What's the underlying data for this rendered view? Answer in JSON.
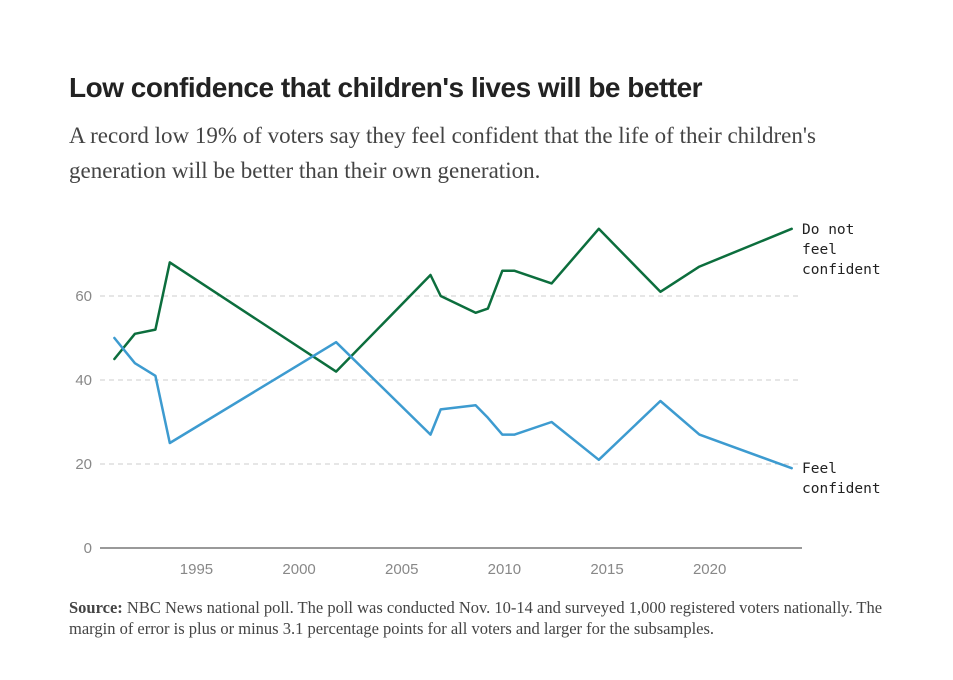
{
  "title": "Low confidence that children's lives will be better",
  "subtitle": "A record low 19% of voters say they feel confident that the life of their children's generation will be better than their own generation.",
  "source": {
    "label": "Source:",
    "text": " NBC News national poll. The poll was conducted Nov. 10-14 and surveyed 1,000 registered voters nationally. The margin of error is plus or minus 3.1 percentage points for all voters and larger for the subsamples."
  },
  "chart_data": {
    "type": "line",
    "xlim": [
      1990.3,
      2024.5
    ],
    "ylim": [
      0,
      80
    ],
    "x_ticks": [
      1995,
      2000,
      2005,
      2010,
      2015,
      2020
    ],
    "y_ticks": [
      0,
      20,
      40,
      60
    ],
    "grid": "horizontal dashed",
    "series": [
      {
        "name": "Do not feel confident",
        "label_lines": [
          "Do not",
          "feel",
          "confident"
        ],
        "color": "#0c6e3d",
        "x": [
          1991.0,
          1992.0,
          1993.0,
          1993.7,
          2001.8,
          2006.4,
          2006.9,
          2008.6,
          2009.2,
          2009.9,
          2010.5,
          2012.3,
          2014.6,
          2017.6,
          2019.5,
          2024.0
        ],
        "y": [
          45,
          51,
          52,
          68,
          42,
          65,
          60,
          56,
          57,
          66,
          66,
          63,
          76,
          61,
          67,
          76
        ]
      },
      {
        "name": "Feel confident",
        "label_lines": [
          "Feel",
          "confident"
        ],
        "color": "#3d9bd0",
        "x": [
          1991.0,
          1992.0,
          1993.0,
          1993.7,
          2001.8,
          2006.4,
          2006.9,
          2008.6,
          2009.2,
          2009.9,
          2010.5,
          2012.3,
          2014.6,
          2017.6,
          2019.5,
          2024.0
        ],
        "y": [
          50,
          44,
          41,
          25,
          49,
          27,
          33,
          34,
          31,
          27,
          27,
          30,
          21,
          35,
          27,
          19
        ]
      }
    ]
  }
}
